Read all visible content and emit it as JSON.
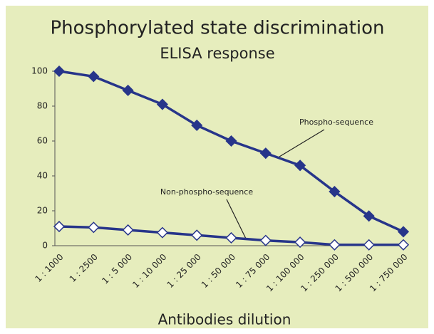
{
  "chart_data": {
    "type": "line",
    "title": "Phosphorylated state discrimination",
    "subtitle": "ELISA response",
    "x_label": "Antibodies dilution",
    "categories": [
      "1 : 1000",
      "1 : 2500",
      "1 : 5 000",
      "1 : 10 000",
      "1 : 25 000",
      "1 : 50 000",
      "1 : 75 000",
      "1 : 100 000",
      "1 : 250 000",
      "1 : 500 000",
      "1 : 750 000"
    ],
    "series": [
      {
        "name": "Phospho-sequence",
        "color": "#27358a",
        "marker_fill": "#27358a",
        "values": [
          100,
          97,
          89,
          81,
          69,
          60,
          53,
          46,
          31,
          17,
          8
        ]
      },
      {
        "name": "Non-phospho-sequence",
        "color": "#27358a",
        "marker_fill": "#ffffff",
        "values": [
          11,
          10.5,
          9,
          7.5,
          6,
          4.5,
          3,
          2,
          0.5,
          0.5,
          0.5
        ]
      }
    ],
    "ylim": [
      0,
      100
    ],
    "yticks": [
      0,
      20,
      40,
      60,
      80,
      100
    ],
    "grid": false
  }
}
